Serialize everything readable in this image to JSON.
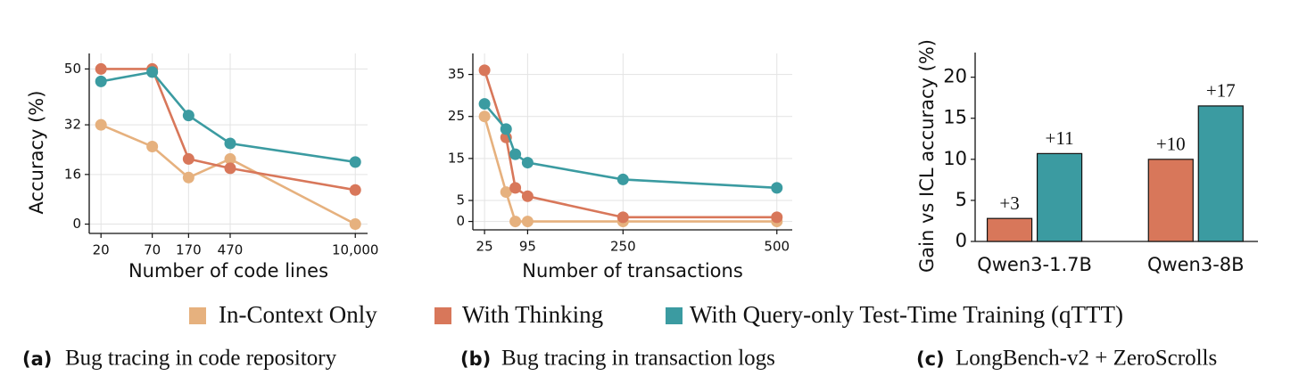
{
  "chart_data": [
    {
      "type": "line",
      "panel": "(a)",
      "caption": "Bug tracing in code repository",
      "xlabel": "Number of code lines",
      "ylabel": "Accuracy (%)",
      "xscale": "log",
      "x": [
        20,
        70,
        170,
        470,
        10000
      ],
      "xlim": [
        15,
        13500
      ],
      "xticks": [
        20,
        70,
        170,
        470,
        {
          "value": 10000,
          "label": "10,000"
        }
      ],
      "ylim": [
        -3,
        55
      ],
      "yticks": [
        0,
        16,
        32,
        50
      ],
      "grid": true,
      "series": [
        {
          "name": "In-Context Only",
          "color": "#e6b17e",
          "values": [
            32,
            25,
            15,
            21,
            0
          ]
        },
        {
          "name": "With Thinking",
          "color": "#d8775a",
          "values": [
            50,
            50,
            21,
            18,
            11
          ]
        },
        {
          "name": "With Query-only Test-Time Training (qTTT)",
          "color": "#3b9ba1",
          "values": [
            46,
            49,
            35,
            26,
            20
          ]
        }
      ]
    },
    {
      "type": "line",
      "panel": "(b)",
      "caption": "Bug tracing in transaction logs",
      "xlabel": "Number of transactions",
      "x": [
        25,
        60,
        75,
        95,
        250,
        500
      ],
      "xlim": [
        6,
        525
      ],
      "xticks": [
        25,
        95,
        250,
        500
      ],
      "ylim": [
        -2,
        40
      ],
      "yticks": [
        0,
        5,
        15,
        25,
        35
      ],
      "grid": true,
      "series": [
        {
          "name": "In-Context Only",
          "color": "#e6b17e",
          "values": [
            25,
            7,
            0,
            0,
            0,
            0
          ]
        },
        {
          "name": "With Thinking",
          "color": "#d8775a",
          "values": [
            36,
            20,
            8,
            6,
            1,
            1
          ]
        },
        {
          "name": "With Query-only Test-Time Training (qTTT)",
          "color": "#3b9ba1",
          "values": [
            28,
            22,
            16,
            14,
            10,
            8
          ]
        }
      ]
    },
    {
      "type": "bar",
      "panel": "(c)",
      "caption": "LongBench-v2 + ZeroScrolls",
      "ylabel": "Gain vs ICL accuracy (%)",
      "categories": [
        "Qwen3-1.7B",
        "Qwen3-8B"
      ],
      "ylim": [
        0,
        23
      ],
      "yticks": [
        0,
        5,
        10,
        15,
        20
      ],
      "grid": false,
      "series": [
        {
          "name": "With Thinking",
          "color": "#d8775a",
          "values": [
            2.8,
            10
          ],
          "value_labels": [
            "+3",
            "+10"
          ]
        },
        {
          "name": "With Query-only Test-Time Training (qTTT)",
          "color": "#3b9ba1",
          "values": [
            10.7,
            16.5
          ],
          "value_labels": [
            "+11",
            "+17"
          ]
        }
      ]
    }
  ]
}
